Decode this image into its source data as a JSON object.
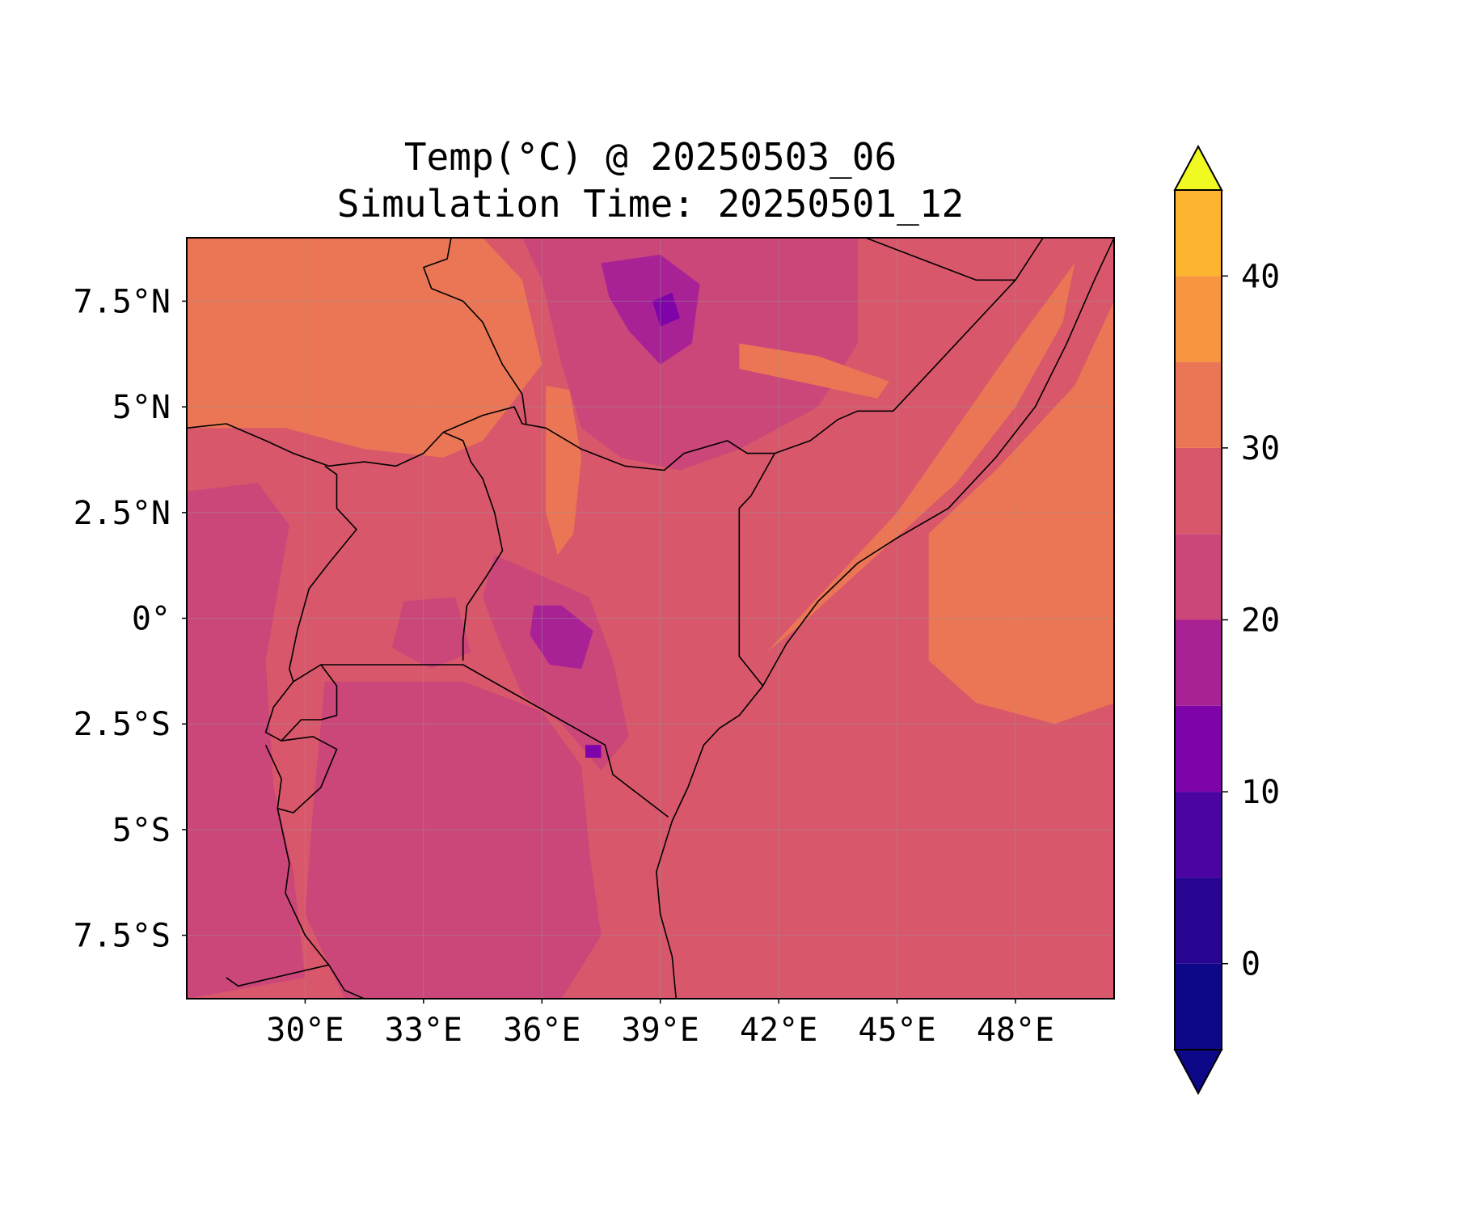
{
  "title": {
    "line1": "Temp(°C) @ 20250503_06",
    "line2": "Simulation Time: 20250501_12"
  },
  "map": {
    "lon_range": [
      27.0,
      50.5
    ],
    "lat_range": [
      -9.0,
      9.0
    ],
    "base_value_celsius": 27,
    "x_ticks": [
      {
        "lon": 30,
        "label": "30°E"
      },
      {
        "lon": 33,
        "label": "33°E"
      },
      {
        "lon": 36,
        "label": "36°E"
      },
      {
        "lon": 39,
        "label": "39°E"
      },
      {
        "lon": 42,
        "label": "42°E"
      },
      {
        "lon": 45,
        "label": "45°E"
      },
      {
        "lon": 48,
        "label": "48°E"
      }
    ],
    "y_ticks": [
      {
        "lat": 7.5,
        "label": "7.5°N"
      },
      {
        "lat": 5,
        "label": "5°N"
      },
      {
        "lat": 2.5,
        "label": "2.5°N"
      },
      {
        "lat": 0,
        "label": "0°"
      },
      {
        "lat": -2.5,
        "label": "2.5°S"
      },
      {
        "lat": -5,
        "label": "5°S"
      },
      {
        "lat": -7.5,
        "label": "7.5°S"
      }
    ],
    "gridlines": true
  },
  "colorbar": {
    "range": [
      -5,
      45
    ],
    "levels": [
      -5,
      0,
      5,
      10,
      15,
      20,
      25,
      30,
      35,
      40,
      45
    ],
    "extend": "both",
    "colors": [
      "#0d0887",
      "#270591",
      "#4b03a1",
      "#7e03a8",
      "#a82296",
      "#cb4679",
      "#d8576b",
      "#eb7655",
      "#f89540",
      "#fdb42f",
      "#f0f921"
    ],
    "ticks": [
      {
        "value": 0,
        "label": "0"
      },
      {
        "value": 10,
        "label": "10"
      },
      {
        "value": 20,
        "label": "20"
      },
      {
        "value": 30,
        "label": "30"
      },
      {
        "value": 40,
        "label": "40"
      }
    ]
  },
  "regions": [
    {
      "name": "sudan-hot-zone",
      "value": 32,
      "points": [
        [
          27,
          9
        ],
        [
          34.5,
          9
        ],
        [
          35.5,
          8
        ],
        [
          36,
          6
        ],
        [
          34.5,
          4.2
        ],
        [
          33.5,
          3.8
        ],
        [
          31.5,
          4
        ],
        [
          29.5,
          4.5
        ],
        [
          27,
          4.5
        ]
      ]
    },
    {
      "name": "ethiopian-highlands",
      "value": 22,
      "points": [
        [
          35.5,
          9
        ],
        [
          44,
          9
        ],
        [
          44,
          6.5
        ],
        [
          43,
          5
        ],
        [
          41,
          4
        ],
        [
          39.5,
          3.5
        ],
        [
          38,
          3.8
        ],
        [
          37,
          4.5
        ],
        [
          36.5,
          6
        ],
        [
          36,
          8
        ]
      ]
    },
    {
      "name": "ethiopia-peak-1",
      "value": 17,
      "points": [
        [
          37.5,
          8.4
        ],
        [
          39,
          8.6
        ],
        [
          40,
          7.9
        ],
        [
          39.8,
          6.5
        ],
        [
          39,
          6
        ],
        [
          38.2,
          6.8
        ],
        [
          37.7,
          7.6
        ]
      ]
    },
    {
      "name": "ethiopia-peak-core",
      "value": 12,
      "points": [
        [
          38.8,
          7.5
        ],
        [
          39.3,
          7.7
        ],
        [
          39.5,
          7.1
        ],
        [
          39,
          6.9
        ]
      ]
    },
    {
      "name": "rift-valley-lowland",
      "value": 32,
      "points": [
        [
          36.1,
          5.5
        ],
        [
          36.7,
          5.4
        ],
        [
          37,
          3.8
        ],
        [
          36.8,
          2
        ],
        [
          36.4,
          1.5
        ],
        [
          36.1,
          2.5
        ]
      ]
    },
    {
      "name": "ogaden-warm-band",
      "value": 32,
      "points": [
        [
          41,
          6.5
        ],
        [
          43,
          6.2
        ],
        [
          44.8,
          5.6
        ],
        [
          44.5,
          5.2
        ],
        [
          42.5,
          5.6
        ],
        [
          41,
          5.9
        ]
      ]
    },
    {
      "name": "somalia-coastal-warm",
      "value": 32,
      "points": [
        [
          41.7,
          -0.8
        ],
        [
          43,
          0.5
        ],
        [
          45,
          2.5
        ],
        [
          46.5,
          4.5
        ],
        [
          48,
          6.5
        ],
        [
          49.5,
          8.4
        ],
        [
          49.2,
          7
        ],
        [
          48,
          5
        ],
        [
          46.5,
          3.2
        ],
        [
          44.5,
          1.5
        ],
        [
          42.5,
          -0.2
        ]
      ]
    },
    {
      "name": "ocean-warm-pool",
      "value": 32,
      "points": [
        [
          45.8,
          2
        ],
        [
          47.5,
          3.5
        ],
        [
          49.5,
          5.5
        ],
        [
          50.5,
          7.5
        ],
        [
          50.5,
          -2
        ],
        [
          49,
          -2.5
        ],
        [
          47,
          -2
        ],
        [
          45.8,
          -1
        ]
      ]
    },
    {
      "name": "west-highlands",
      "value": 22,
      "points": [
        [
          27,
          3
        ],
        [
          28.8,
          3.2
        ],
        [
          29.6,
          2.2
        ],
        [
          29,
          -1
        ],
        [
          29.2,
          -4
        ],
        [
          29.7,
          -6
        ],
        [
          30,
          -8.5
        ],
        [
          27,
          -9
        ]
      ]
    },
    {
      "name": "tanzania-central",
      "value": 22,
      "points": [
        [
          30.5,
          -1.5
        ],
        [
          34,
          -1.5
        ],
        [
          36,
          -2.2
        ],
        [
          37,
          -3.5
        ],
        [
          37.2,
          -5.5
        ],
        [
          37.5,
          -7.5
        ],
        [
          36.5,
          -9
        ],
        [
          31,
          -9
        ],
        [
          30,
          -7
        ],
        [
          30.2,
          -4.5
        ]
      ]
    },
    {
      "name": "kenya-highlands",
      "value": 22,
      "points": [
        [
          34.8,
          1.5
        ],
        [
          36,
          1
        ],
        [
          37.2,
          0.5
        ],
        [
          37.8,
          -1
        ],
        [
          38.2,
          -2.8
        ],
        [
          37.5,
          -3.6
        ],
        [
          36.5,
          -2.5
        ],
        [
          35.5,
          -1.8
        ],
        [
          34.9,
          -0.5
        ],
        [
          34.5,
          0.5
        ]
      ]
    },
    {
      "name": "kenya-highlands-core",
      "value": 17,
      "points": [
        [
          35.8,
          0.3
        ],
        [
          36.5,
          0.3
        ],
        [
          37.3,
          -0.3
        ],
        [
          37,
          -1.2
        ],
        [
          36.2,
          -1.1
        ],
        [
          35.7,
          -0.4
        ]
      ]
    },
    {
      "name": "kilimanjaro-core",
      "value": 12,
      "points": [
        [
          37.1,
          -3
        ],
        [
          37.5,
          -3
        ],
        [
          37.5,
          -3.3
        ],
        [
          37.1,
          -3.3
        ]
      ]
    },
    {
      "name": "uganda-lake-area",
      "value": 22,
      "points": [
        [
          32.5,
          0.4
        ],
        [
          33.8,
          0.5
        ],
        [
          34.2,
          -0.8
        ],
        [
          33.2,
          -1.2
        ],
        [
          32.2,
          -0.7
        ]
      ]
    }
  ],
  "borders": [
    [
      [
        27,
        4.5
      ],
      [
        28,
        4.6
      ],
      [
        29,
        4.2
      ],
      [
        29.7,
        3.9
      ],
      [
        30.6,
        3.6
      ],
      [
        31.5,
        3.7
      ],
      [
        32.3,
        3.6
      ],
      [
        33,
        3.9
      ],
      [
        33.5,
        4.4
      ],
      [
        34.5,
        4.8
      ],
      [
        35.3,
        5
      ],
      [
        35.5,
        4.6
      ],
      [
        36.1,
        4.5
      ],
      [
        37,
        4
      ],
      [
        38.1,
        3.6
      ],
      [
        39.1,
        3.5
      ],
      [
        39.6,
        3.9
      ],
      [
        40.7,
        4.2
      ],
      [
        41.2,
        3.9
      ],
      [
        41.9,
        3.9
      ]
    ],
    [
      [
        33.5,
        4.4
      ],
      [
        34,
        4.2
      ],
      [
        34.2,
        3.7
      ],
      [
        34.5,
        3.3
      ],
      [
        34.8,
        2.5
      ],
      [
        35,
        1.6
      ],
      [
        34.6,
        1
      ],
      [
        34.1,
        0.3
      ],
      [
        34,
        -0.5
      ],
      [
        34,
        -1
      ]
    ],
    [
      [
        30.5,
        3.6
      ],
      [
        30.8,
        3.4
      ],
      [
        30.8,
        2.6
      ],
      [
        31.3,
        2.1
      ],
      [
        30.6,
        1.3
      ],
      [
        30.1,
        0.7
      ],
      [
        29.8,
        -0.3
      ],
      [
        29.6,
        -1.2
      ],
      [
        29.7,
        -1.5
      ]
    ],
    [
      [
        30.4,
        -1.1
      ],
      [
        34,
        -1.1
      ],
      [
        37.6,
        -3
      ],
      [
        37.8,
        -3.7
      ],
      [
        39.2,
        -4.7
      ]
    ],
    [
      [
        29.7,
        -1.5
      ],
      [
        30.4,
        -1.1
      ],
      [
        30.8,
        -1.6
      ],
      [
        30.8,
        -2.3
      ],
      [
        30.4,
        -2.4
      ],
      [
        29.9,
        -2.4
      ],
      [
        29.4,
        -2.9
      ],
      [
        29,
        -2.7
      ],
      [
        29.2,
        -2.1
      ],
      [
        29.7,
        -1.5
      ]
    ],
    [
      [
        29.4,
        -2.9
      ],
      [
        30.2,
        -2.8
      ],
      [
        30.8,
        -3.1
      ],
      [
        30.4,
        -4
      ],
      [
        29.7,
        -4.6
      ],
      [
        29.3,
        -4.5
      ],
      [
        29.4,
        -3.8
      ],
      [
        29,
        -3
      ]
    ],
    [
      [
        29.3,
        -4.5
      ],
      [
        29.6,
        -5.8
      ],
      [
        29.5,
        -6.5
      ],
      [
        30,
        -7.5
      ],
      [
        30.6,
        -8.2
      ],
      [
        31,
        -8.8
      ],
      [
        31.5,
        -9
      ]
    ],
    [
      [
        28,
        -8.5
      ],
      [
        28.3,
        -8.7
      ],
      [
        30.6,
        -8.2
      ]
    ],
    [
      [
        33.7,
        9
      ],
      [
        33.6,
        8.5
      ],
      [
        33,
        8.3
      ],
      [
        33.2,
        7.8
      ],
      [
        34,
        7.5
      ],
      [
        34.5,
        7
      ],
      [
        35,
        6
      ],
      [
        35.5,
        5.3
      ],
      [
        35.6,
        4.6
      ]
    ],
    [
      [
        41.9,
        3.9
      ],
      [
        42.8,
        4.2
      ],
      [
        43.5,
        4.7
      ],
      [
        44,
        4.9
      ],
      [
        44.9,
        4.9
      ],
      [
        46,
        6
      ],
      [
        47.5,
        7.5
      ],
      [
        48,
        8
      ],
      [
        48.7,
        9
      ]
    ],
    [
      [
        44.2,
        9
      ],
      [
        47,
        8
      ],
      [
        48,
        8
      ]
    ],
    [
      [
        41.9,
        3.9
      ],
      [
        41.3,
        2.9
      ],
      [
        41,
        2.6
      ],
      [
        41,
        -0.9
      ],
      [
        41.6,
        -1.6
      ]
    ],
    [
      [
        50.5,
        9
      ],
      [
        50,
        8
      ],
      [
        49.3,
        6.5
      ],
      [
        48.5,
        5
      ],
      [
        47.5,
        3.8
      ],
      [
        46.3,
        2.6
      ],
      [
        45,
        1.9
      ],
      [
        44,
        1.3
      ],
      [
        43,
        0.4
      ],
      [
        42.2,
        -0.6
      ],
      [
        41.6,
        -1.6
      ],
      [
        41,
        -2.3
      ],
      [
        40.5,
        -2.6
      ],
      [
        40.1,
        -3
      ],
      [
        39.7,
        -4
      ],
      [
        39.3,
        -4.8
      ],
      [
        38.9,
        -6
      ],
      [
        39,
        -7
      ],
      [
        39.3,
        -8
      ],
      [
        39.4,
        -9
      ]
    ]
  ]
}
